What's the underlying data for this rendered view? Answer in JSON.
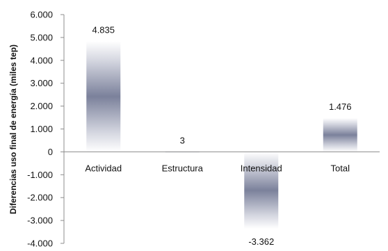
{
  "chart_data": {
    "type": "bar",
    "title": "",
    "xlabel": "",
    "ylabel": "Diferencias uso final de energía (miles tep)",
    "categories": [
      "Actividad",
      "Estructura",
      "Intensidad",
      "Total"
    ],
    "values": [
      4835,
      3,
      -3362,
      1476
    ],
    "value_labels": [
      "4.835",
      "3",
      "-3.362",
      "1.476"
    ],
    "ylim": [
      -4000,
      6000
    ],
    "yticks": [
      6000,
      5000,
      4000,
      3000,
      2000,
      1000,
      0,
      -1000,
      -2000,
      -3000,
      -4000
    ],
    "ytick_labels": [
      "6.000",
      "5.000",
      "4.000",
      "3.000",
      "2.000",
      "1.000",
      "0",
      "-1.000",
      "-2.000",
      "-3.000",
      "-4.000"
    ],
    "grid": false,
    "legend": "none",
    "colors": {
      "bar_light": "#ffffff",
      "bar_mid": "#d3d5df",
      "bar_dark": "#7b819b",
      "axis": "#8c8c8c",
      "text": "#111111"
    }
  }
}
